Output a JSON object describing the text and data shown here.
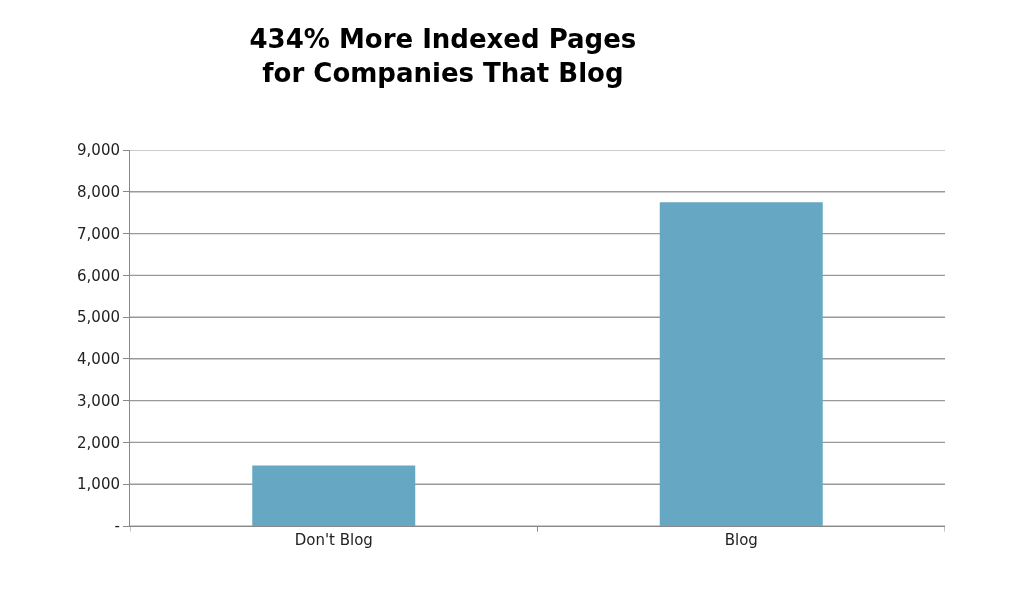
{
  "chart_data": {
    "type": "bar",
    "title": "434% More Indexed Pages\nfor Companies That Blog",
    "categories": [
      "Don't Blog",
      "Blog"
    ],
    "values": [
      1450,
      7750
    ],
    "color": "#66a8c3",
    "ylim": [
      0,
      9000
    ],
    "yticks": [
      {
        "value": 0,
        "label": "-"
      },
      {
        "value": 1000,
        "label": "1,000"
      },
      {
        "value": 2000,
        "label": "2,000"
      },
      {
        "value": 3000,
        "label": "3,000"
      },
      {
        "value": 4000,
        "label": "4,000"
      },
      {
        "value": 5000,
        "label": "5,000"
      },
      {
        "value": 6000,
        "label": "6,000"
      },
      {
        "value": 7000,
        "label": "7,000"
      },
      {
        "value": 8000,
        "label": "8,000"
      },
      {
        "value": 9000,
        "label": "9,000"
      }
    ],
    "grid": "y"
  }
}
